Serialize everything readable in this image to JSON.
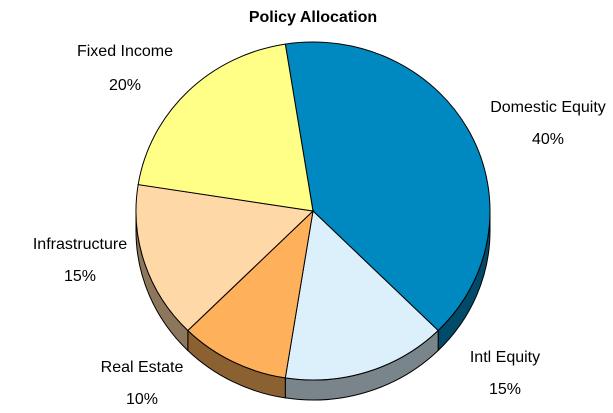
{
  "chart_data": {
    "type": "pie",
    "title": "Policy Allocation",
    "categories": [
      "Domestic Equity",
      "Intl Equity",
      "Real Estate",
      "Infrastructure",
      "Fixed Income"
    ],
    "values": [
      40,
      15,
      10,
      15,
      20
    ],
    "value_labels": [
      "40%",
      "15%",
      "10%",
      "15%",
      "20%"
    ],
    "colors": [
      "#0088c0",
      "#dcf0fc",
      "#ffb05a",
      "#ffd8a8",
      "#ffff88"
    ]
  }
}
